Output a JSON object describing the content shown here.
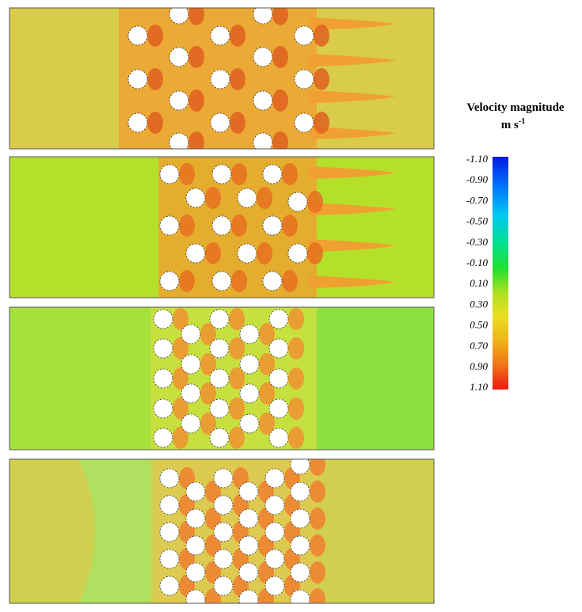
{
  "colorbar": {
    "title": "Velocity magnitude",
    "unit": "m s",
    "unit_exponent": "-1",
    "ticks": [
      "-1.10",
      "-0.90",
      "-0.70",
      "-0.50",
      "-0.30",
      "-0.10",
      "0.10",
      "0.30",
      "0.50",
      "0.70",
      "0.90",
      "1.10"
    ]
  }
}
